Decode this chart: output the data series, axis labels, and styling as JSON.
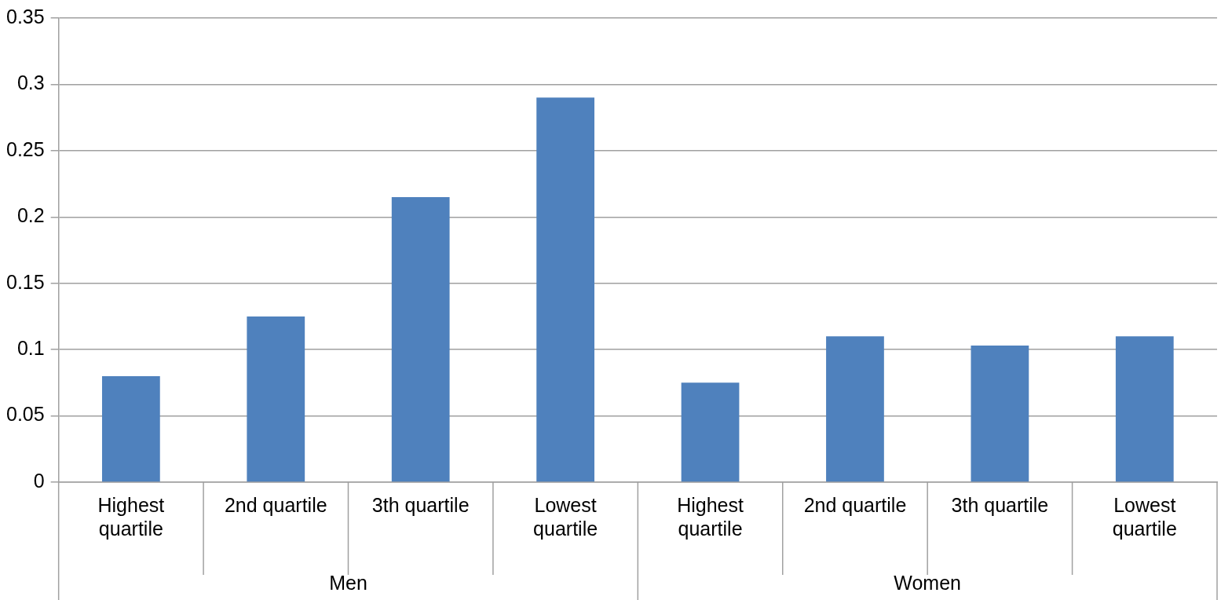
{
  "chart_data": {
    "type": "bar",
    "categories": [
      "Highest quartile",
      "2nd quartile",
      "3th quartile",
      "Lowest quartile",
      "Highest quartile",
      "2nd quartile",
      "3th quartile",
      "Lowest quartile"
    ],
    "values": [
      0.08,
      0.125,
      0.215,
      0.29,
      0.075,
      0.11,
      0.103,
      0.11
    ],
    "color": "#4f81bd",
    "ylim": [
      0,
      0.35
    ],
    "yticks": [
      0,
      0.05,
      0.1,
      0.15,
      0.2,
      0.25,
      0.3,
      0.35
    ],
    "grid": "y",
    "legend": false,
    "annotations": [
      "Men",
      "Women"
    ]
  }
}
